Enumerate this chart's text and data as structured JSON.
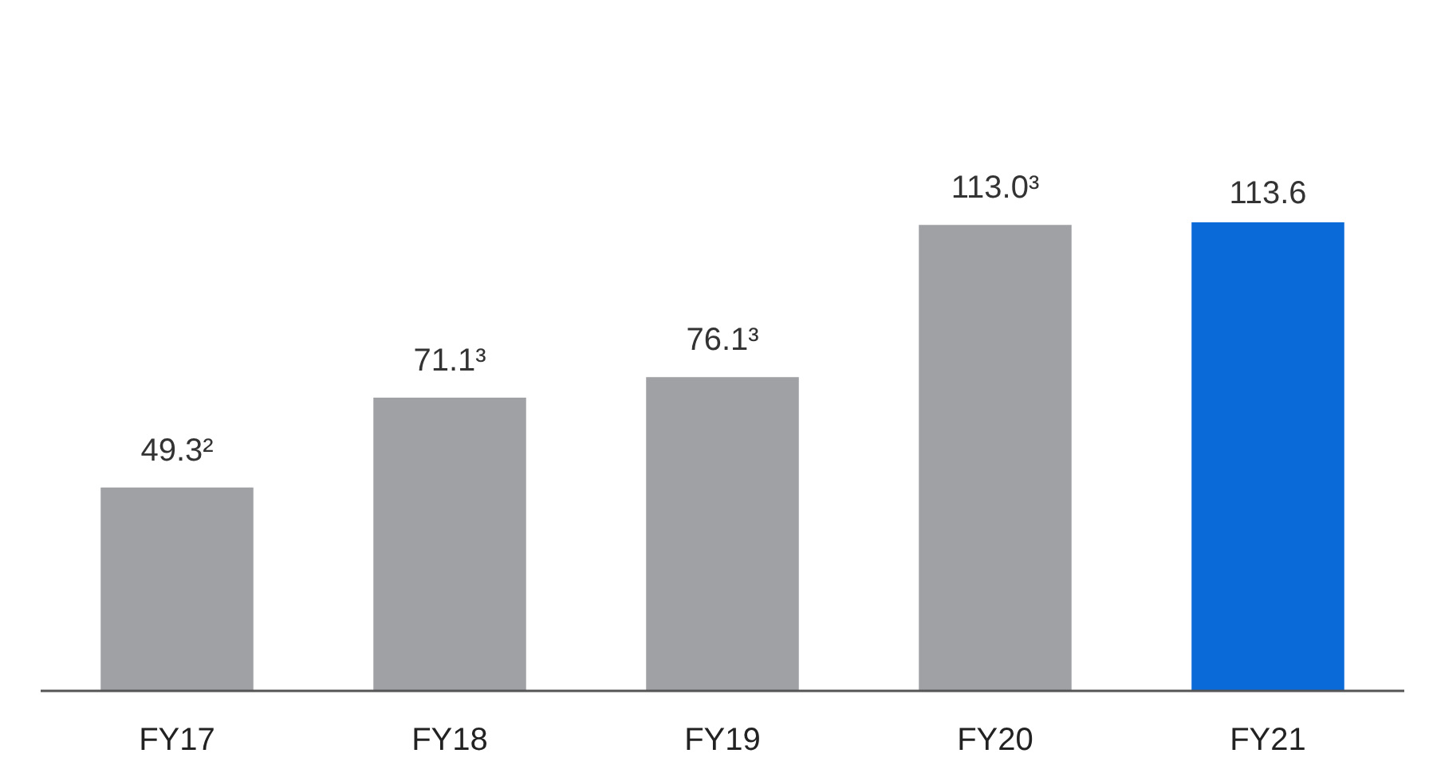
{
  "chart_data": {
    "type": "bar",
    "categories": [
      "FY17",
      "FY18",
      "FY19",
      "FY20",
      "FY21"
    ],
    "values": [
      49.3,
      71.1,
      76.1,
      113.0,
      113.6
    ],
    "colors": [
      "#a0a1a5",
      "#a0a1a5",
      "#a0a1a5",
      "#a0a1a5",
      "#0a6ad8"
    ],
    "value_labels": [
      "49.3²",
      "71.1³",
      "76.1³",
      "113.0³",
      "113.6"
    ],
    "grid": false
  }
}
